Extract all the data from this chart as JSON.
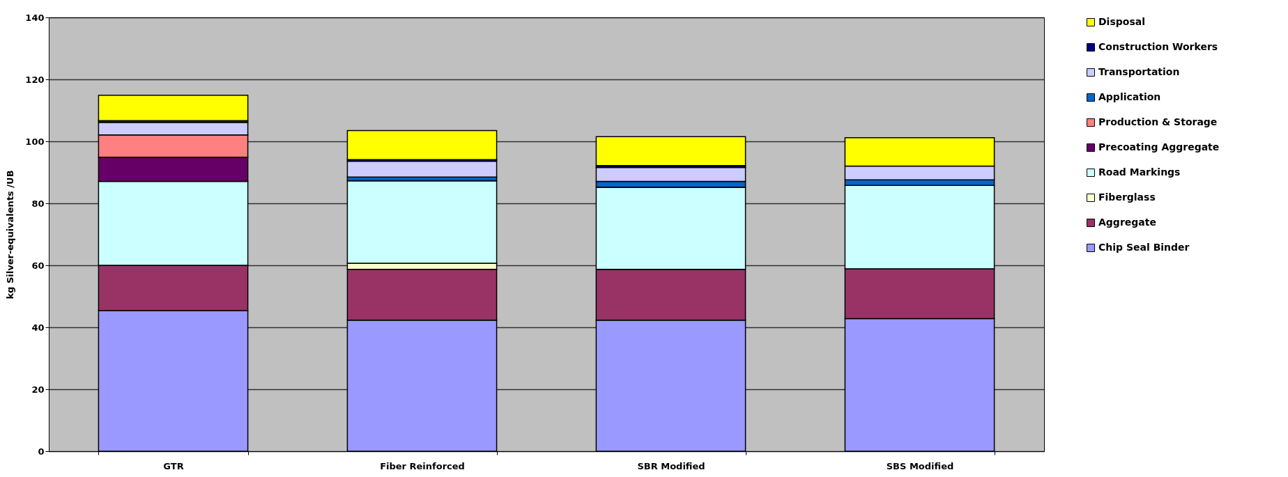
{
  "chart_data": {
    "type": "bar",
    "stacked": true,
    "ylabel": "kg Silver-equivalents /UB",
    "categories": [
      "GTR",
      "Fiber Reinforced",
      "SBR Modified",
      "SBS Modified"
    ],
    "series": [
      {
        "name": "Chip Seal Binder",
        "color": "#9999ff",
        "values": [
          45.4,
          42.3,
          42.3,
          42.8
        ]
      },
      {
        "name": "Aggregate",
        "color": "#993366",
        "values": [
          14.6,
          16.4,
          16.4,
          16.1
        ]
      },
      {
        "name": "Fiberglass",
        "color": "#ffffcc",
        "values": [
          0,
          2.0,
          0,
          0
        ]
      },
      {
        "name": "Road Markings",
        "color": "#ccffff",
        "values": [
          27.1,
          26.6,
          26.5,
          26.9
        ]
      },
      {
        "name": "Precoating Aggregate",
        "color": "#660066",
        "values": [
          7.8,
          0,
          0,
          0
        ]
      },
      {
        "name": "Production & Storage",
        "color": "#ff8080",
        "values": [
          7.2,
          0,
          0,
          0
        ]
      },
      {
        "name": "Application",
        "color": "#0066cc",
        "values": [
          null,
          1.2,
          1.9,
          1.8
        ]
      },
      {
        "name": "Transportation",
        "color": "#ccccff",
        "values": [
          4.0,
          5.1,
          4.5,
          4.4
        ]
      },
      {
        "name": "Construction Workers",
        "color": "#000080",
        "values": [
          0.6,
          0.5,
          0.6,
          null
        ]
      },
      {
        "name": "Disposal",
        "color": "#ffff00",
        "values": [
          8.2,
          9.4,
          9.3,
          9.2
        ]
      }
    ],
    "ylim": [
      0,
      140
    ],
    "yticks": [
      0,
      20,
      40,
      60,
      80,
      100,
      120,
      140
    ],
    "grid": "y",
    "legend": "right"
  }
}
